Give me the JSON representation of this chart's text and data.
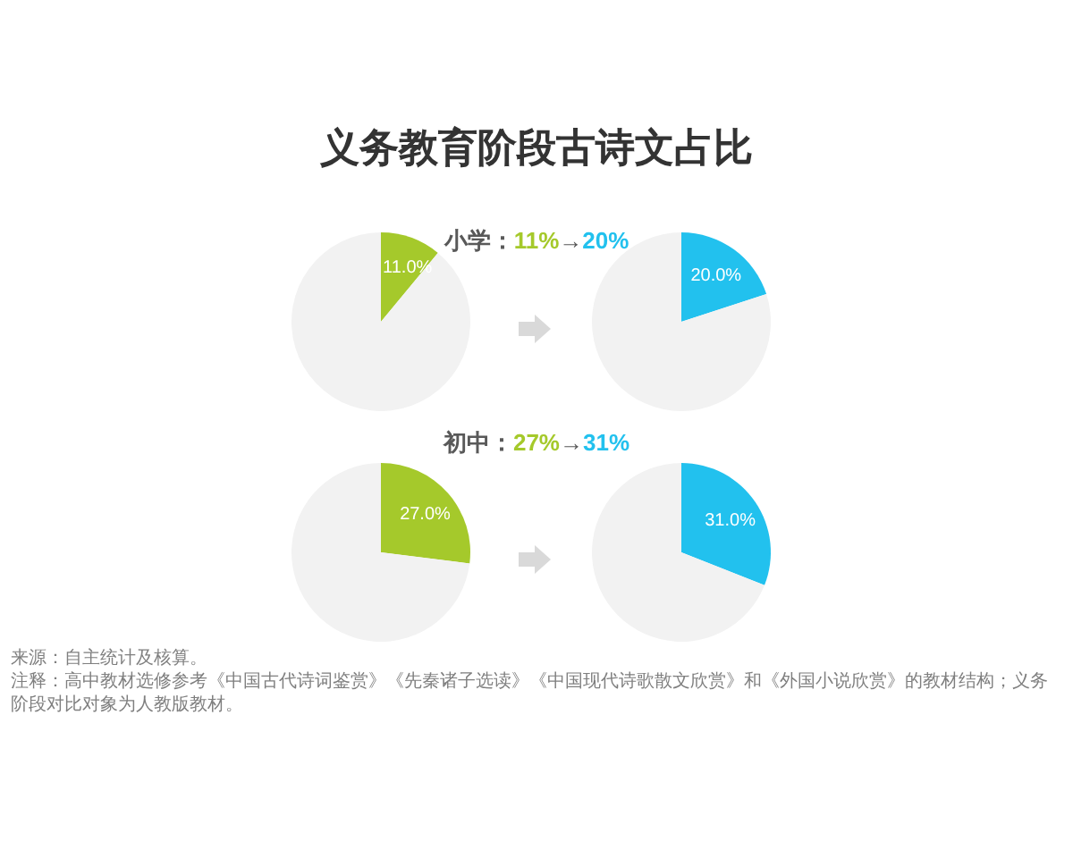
{
  "chart_data": [
    {
      "type": "pie",
      "title": "义务教育阶段古诗文占比",
      "subtitle": "小学：11%→20%",
      "categories": [
        null,
        null
      ],
      "values": [
        11,
        89
      ],
      "colors": [
        "#a5c92b",
        "#f2f2f2"
      ],
      "value_labels": [
        "11.0%",
        null
      ],
      "annotations": [
        "来源：自主统计及核算。",
        "注释：高中教材选修参考《中国古代诗词鉴赏》《先秦诸子选读》《中国现代诗歌散文欣赏》和《外国小说欣赏》的教材结构；义务阶段对比对象为人教版教材。"
      ]
    },
    {
      "type": "pie",
      "categories": [
        null,
        null
      ],
      "values": [
        20,
        80
      ],
      "colors": [
        "#22c1ee",
        "#f2f2f2"
      ],
      "value_labels": [
        "20.0%",
        null
      ]
    },
    {
      "type": "pie",
      "subtitle": "初中：27%→31%",
      "categories": [
        null,
        null
      ],
      "values": [
        27,
        73
      ],
      "colors": [
        "#a5c92b",
        "#f2f2f2"
      ],
      "value_labels": [
        "27.0%",
        null
      ]
    },
    {
      "type": "pie",
      "categories": [
        null,
        null
      ],
      "values": [
        31,
        69
      ],
      "colors": [
        "#22c1ee",
        "#f2f2f2"
      ],
      "value_labels": [
        "31.0%",
        null
      ]
    }
  ]
}
